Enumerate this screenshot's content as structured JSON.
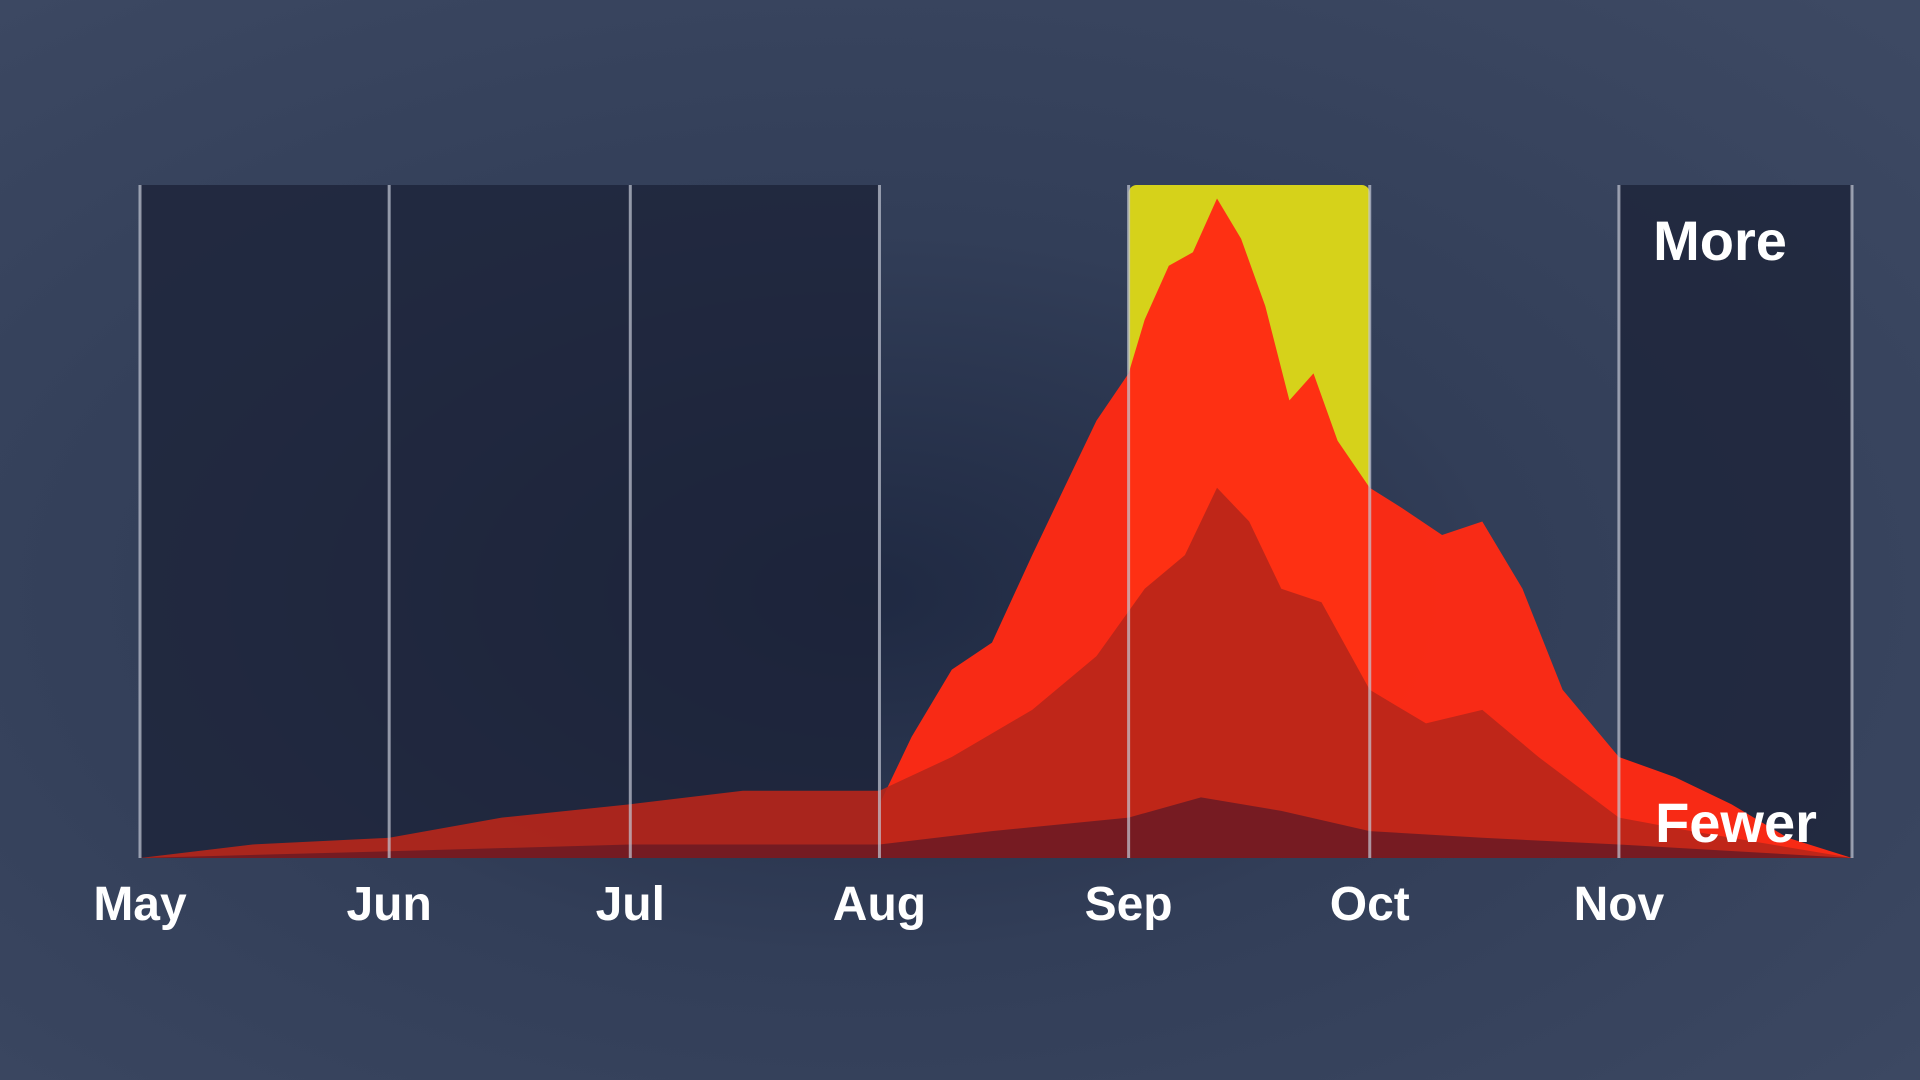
{
  "chart_data": {
    "type": "area",
    "x_axis": {
      "kind": "date",
      "range": [
        "May 1",
        "Nov 30"
      ],
      "tick_labels": [
        "May",
        "Jun",
        "Jul",
        "Aug",
        "Sep",
        "Oct",
        "Nov"
      ],
      "tick_dates": [
        "May 1",
        "Jun 1",
        "Jul 1",
        "Aug 1",
        "Sep 1",
        "Oct 1",
        "Nov 1"
      ]
    },
    "y_axis": {
      "top_label": "More",
      "bottom_label": "Fewer",
      "numeric_labels": false,
      "ylim": [
        0,
        100
      ]
    },
    "grid": "vertical month dividers",
    "highlight": {
      "from": "Sep 1",
      "to": "Oct 1",
      "color": "#d6d21a"
    },
    "shaded_months": [
      "May",
      "Jun",
      "Jul",
      "Nov"
    ],
    "series": [
      {
        "color": "#ff2a14",
        "points": [
          [
            "Aug 1",
            8
          ],
          [
            "Aug 5",
            18
          ],
          [
            "Aug 10",
            28
          ],
          [
            "Aug 15",
            32
          ],
          [
            "Aug 20",
            45
          ],
          [
            "Aug 24",
            55
          ],
          [
            "Aug 28",
            65
          ],
          [
            "Sep 1",
            72
          ],
          [
            "Sep 3",
            80
          ],
          [
            "Sep 6",
            88
          ],
          [
            "Sep 9",
            90
          ],
          [
            "Sep 12",
            98
          ],
          [
            "Sep 15",
            92
          ],
          [
            "Sep 18",
            82
          ],
          [
            "Sep 21",
            68
          ],
          [
            "Sep 24",
            72
          ],
          [
            "Sep 27",
            62
          ],
          [
            "Oct 1",
            55
          ],
          [
            "Oct 5",
            52
          ],
          [
            "Oct 10",
            48
          ],
          [
            "Oct 15",
            50
          ],
          [
            "Oct 20",
            40
          ],
          [
            "Oct 25",
            25
          ],
          [
            "Nov 1",
            15
          ],
          [
            "Nov 8",
            12
          ],
          [
            "Nov 15",
            8
          ],
          [
            "Nov 22",
            3
          ],
          [
            "Nov 30",
            0
          ]
        ]
      },
      {
        "color": "#b82619",
        "points": [
          [
            "May 1",
            0
          ],
          [
            "May 15",
            2
          ],
          [
            "Jun 1",
            3
          ],
          [
            "Jun 15",
            6
          ],
          [
            "Jul 1",
            8
          ],
          [
            "Jul 15",
            10
          ],
          [
            "Aug 1",
            10
          ],
          [
            "Aug 10",
            15
          ],
          [
            "Aug 20",
            22
          ],
          [
            "Aug 28",
            30
          ],
          [
            "Sep 3",
            40
          ],
          [
            "Sep 8",
            45
          ],
          [
            "Sep 12",
            55
          ],
          [
            "Sep 16",
            50
          ],
          [
            "Sep 20",
            40
          ],
          [
            "Sep 25",
            38
          ],
          [
            "Oct 1",
            25
          ],
          [
            "Oct 8",
            20
          ],
          [
            "Oct 15",
            22
          ],
          [
            "Oct 22",
            15
          ],
          [
            "Nov 1",
            6
          ],
          [
            "Nov 10",
            4
          ],
          [
            "Nov 20",
            2
          ],
          [
            "Nov 30",
            0
          ]
        ]
      },
      {
        "color": "#6e1b24",
        "points": [
          [
            "May 1",
            0
          ],
          [
            "Jun 1",
            1
          ],
          [
            "Jul 1",
            2
          ],
          [
            "Aug 1",
            2
          ],
          [
            "Aug 15",
            4
          ],
          [
            "Sep 1",
            6
          ],
          [
            "Sep 10",
            9
          ],
          [
            "Sep 20",
            7
          ],
          [
            "Oct 1",
            4
          ],
          [
            "Oct 15",
            3
          ],
          [
            "Nov 1",
            2
          ],
          [
            "Nov 30",
            0
          ]
        ]
      }
    ]
  }
}
